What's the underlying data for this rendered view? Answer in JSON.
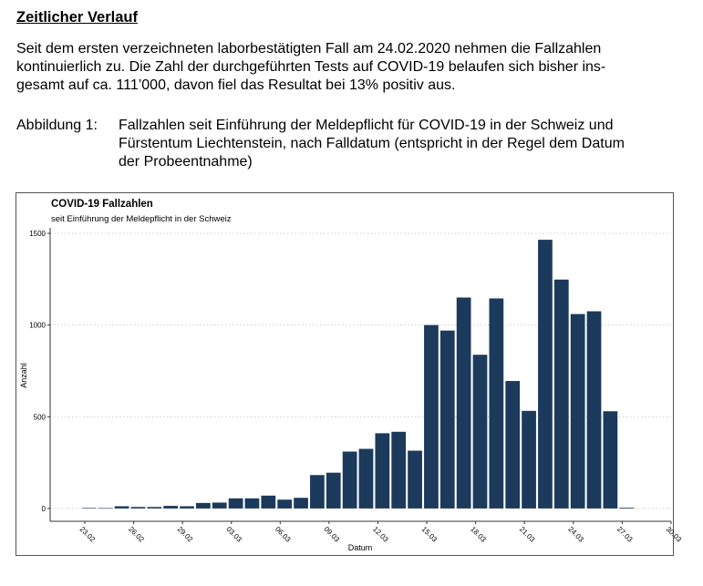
{
  "section": {
    "heading": "Zeitlicher Verlauf",
    "paragraph_lines": [
      "Seit dem ersten verzeichneten laborbestätigten Fall am 24.02.2020 nehmen die Fallzahlen",
      "kontinuierlich zu. Die Zahl der durchgeführten Tests auf COVID-19 belaufen sich bisher ins-",
      "gesamt auf ca. 111’000, davon fiel das Resultat bei 13% positiv aus."
    ]
  },
  "figure": {
    "label": "Abbildung 1:",
    "caption_lines": [
      "Fallzahlen seit Einführung der Meldepflicht für COVID-19 in der Schweiz und",
      "Fürstentum Liechtenstein, nach Falldatum (entspricht in der Regel dem Datum",
      "der Probeentnahme)"
    ]
  },
  "chart_data": {
    "type": "bar",
    "title": "COVID-19 Fallzahlen",
    "subtitle": "seit Einführung der Meldepflicht in der Schweiz",
    "xlabel": "Datum",
    "ylabel": "Anzahl",
    "ylim": [
      -70,
      1530
    ],
    "yticks": [
      0,
      500,
      1000,
      1500
    ],
    "xticks": [
      "23.02",
      "26.02",
      "29.02",
      "03.03",
      "06.03",
      "09.03",
      "12.03",
      "15.03",
      "18.03",
      "21.03",
      "24.03",
      "27.03",
      "30.03"
    ],
    "categories": [
      "23.02",
      "24.02",
      "25.02",
      "26.02",
      "27.02",
      "28.02",
      "29.02",
      "01.03",
      "02.03",
      "03.03",
      "04.03",
      "05.03",
      "06.03",
      "07.03",
      "08.03",
      "09.03",
      "10.03",
      "11.03",
      "12.03",
      "13.03",
      "14.03",
      "15.03",
      "16.03",
      "17.03",
      "18.03",
      "19.03",
      "20.03",
      "21.03",
      "22.03",
      "23.03",
      "24.03",
      "25.03",
      "26.03",
      "27.03",
      "28.03",
      "29.03"
    ],
    "values": [
      0,
      3,
      2,
      12,
      8,
      8,
      14,
      12,
      30,
      32,
      55,
      55,
      70,
      48,
      58,
      182,
      195,
      310,
      325,
      410,
      418,
      315,
      1000,
      970,
      1150,
      838,
      1145,
      695,
      532,
      1465,
      1248,
      1060,
      1075,
      530,
      4,
      0
    ],
    "bar_color": "#1b3a5c",
    "grid": "dotted horizontal"
  }
}
